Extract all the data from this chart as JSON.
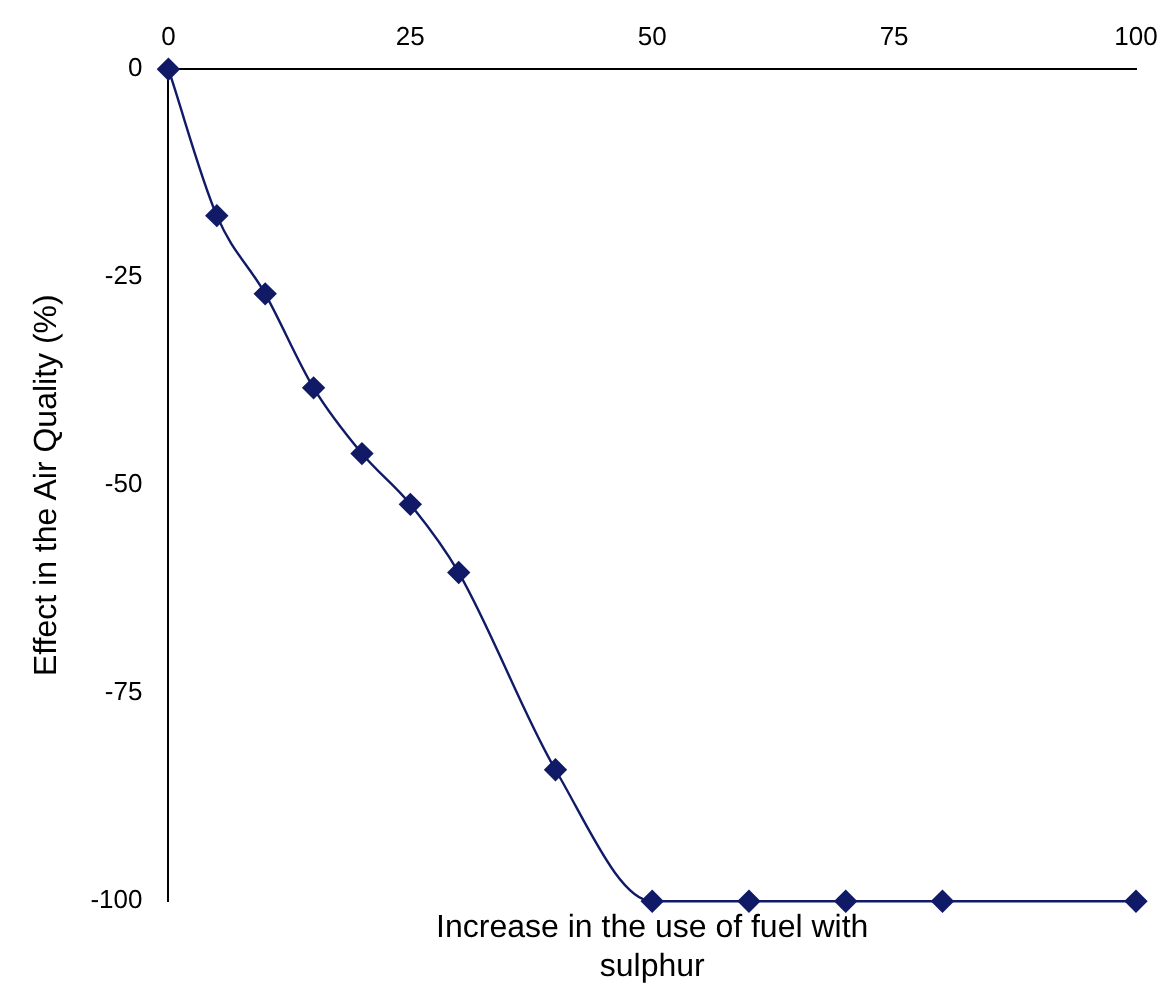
{
  "chart_data": {
    "type": "line",
    "xlabel": "Increase in the use of fuel with sulphur",
    "ylabel": "Effect in the Air Quality (%)",
    "x": [
      0,
      5,
      10,
      15,
      20,
      25,
      30,
      40,
      50,
      60,
      70,
      80,
      100
    ],
    "series": [
      {
        "color": "#101a66",
        "values": [
          0,
          -17.6,
          -27,
          -38.3,
          -46.2,
          -52.3,
          -60.5,
          -84.2,
          -100,
          -100,
          -100,
          -100,
          -100
        ]
      }
    ],
    "xlim": [
      0,
      100
    ],
    "xticks": [
      0,
      25,
      50,
      75,
      100
    ],
    "ylim": [
      -100,
      0
    ],
    "yticks": [
      -100,
      -75,
      -50,
      -25,
      0
    ],
    "grid": false,
    "legend": false,
    "marker": "diamond",
    "line_style": "solid"
  }
}
